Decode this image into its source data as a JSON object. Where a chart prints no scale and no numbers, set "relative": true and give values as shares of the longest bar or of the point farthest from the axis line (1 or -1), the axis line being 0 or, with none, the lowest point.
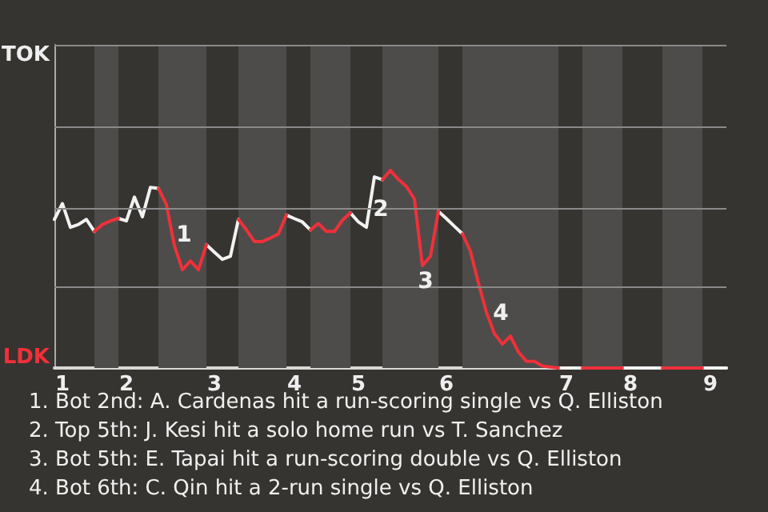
{
  "chart_data": {
    "type": "line",
    "relative": true,
    "categories": [
      null,
      "1",
      null,
      null,
      null,
      null,
      null,
      null,
      null,
      "2",
      null,
      null,
      null,
      null,
      null,
      null,
      null,
      null,
      null,
      null,
      "3",
      null,
      null,
      null,
      null,
      null,
      null,
      null,
      null,
      null,
      "4",
      null,
      null,
      null,
      null,
      null,
      null,
      null,
      "5",
      null,
      null,
      null,
      null,
      null,
      null,
      null,
      null,
      null,
      null,
      "6",
      null,
      null,
      null,
      null,
      null,
      null,
      null,
      null,
      null,
      null,
      null,
      null,
      null,
      null,
      "7",
      null,
      null,
      null,
      null,
      null,
      null,
      null,
      "8",
      null,
      null,
      null,
      null,
      null,
      null,
      null,
      null,
      null,
      "9",
      null,
      null
    ],
    "series": [
      {
        "color": "#f2f2f2",
        "values": [
          0.752,
          0.832,
          0.712,
          0.726,
          0.752,
          0.691,
          null,
          null,
          0.757,
          0.744,
          0.865,
          0.765,
          0.914,
          0.909,
          null,
          null,
          null,
          null,
          null,
          0.624,
          0.586,
          0.55,
          0.565,
          0.752,
          null,
          null,
          null,
          null,
          null,
          0.774,
          0.756,
          0.739,
          0.699,
          null,
          null,
          null,
          null,
          0.785,
          0.739,
          0.712,
          0.967,
          0.953,
          null,
          null,
          null,
          null,
          null,
          null,
          0.793,
          0.756,
          0.717,
          0.679,
          null,
          null,
          null,
          null,
          null,
          null,
          null,
          null,
          null,
          null,
          null,
          0,
          0,
          0,
          0,
          null,
          null,
          null,
          null,
          0,
          0,
          0,
          0,
          0,
          0,
          null,
          null,
          null,
          null,
          0,
          0,
          0,
          0
        ]
      },
      {
        "color": "#f0303a",
        "values": [
          null,
          null,
          null,
          null,
          null,
          0.691,
          0.726,
          0.744,
          0.757,
          null,
          null,
          null,
          null,
          0.909,
          0.827,
          0.619,
          0.497,
          0.542,
          0.497,
          0.624,
          null,
          null,
          null,
          0.752,
          0.699,
          0.64,
          0.64,
          0.658,
          0.678,
          0.774,
          null,
          null,
          0.699,
          0.731,
          0.691,
          0.691,
          0.748,
          0.785,
          null,
          null,
          null,
          0.953,
          1,
          0.954,
          0.919,
          0.855,
          0.518,
          0.565,
          0.793,
          null,
          null,
          0.679,
          0.591,
          0.43,
          0.282,
          0.174,
          0.121,
          0.161,
          0.081,
          0.034,
          0.033,
          0.01,
          0.005,
          0,
          null,
          null,
          0,
          0,
          0,
          0,
          0,
          0,
          null,
          null,
          null,
          null,
          0,
          0,
          0,
          0,
          0,
          0,
          null,
          null,
          null
        ]
      }
    ],
    "marker": "none",
    "line_style": "solid",
    "ref_lines": [
      {
        "axis": "y",
        "value": 0.407,
        "color": "#8a8a8a"
      },
      {
        "axis": "y",
        "value": 0.814,
        "color": "#8a8a8a"
      },
      {
        "axis": "y",
        "value": 1.221,
        "color": "#8a8a8a"
      },
      {
        "axis": "y",
        "value": 1.629,
        "color": "#8a8a8a"
      }
    ],
    "annotations": [
      "TOK",
      "LDK",
      "1",
      "2",
      "3",
      "4",
      "1. Bot 2nd: A. Cardenas hit a run-scoring single vs Q. Elliston",
      "2. Top 5th: J. Kesi hit a solo home run vs T. Sanchez",
      "3. Bot 5th: E. Tapai hit a run-scoring double vs Q. Elliston",
      "4. Bot 6th: C. Qin hit a 2-run single vs Q. Elliston"
    ]
  }
}
